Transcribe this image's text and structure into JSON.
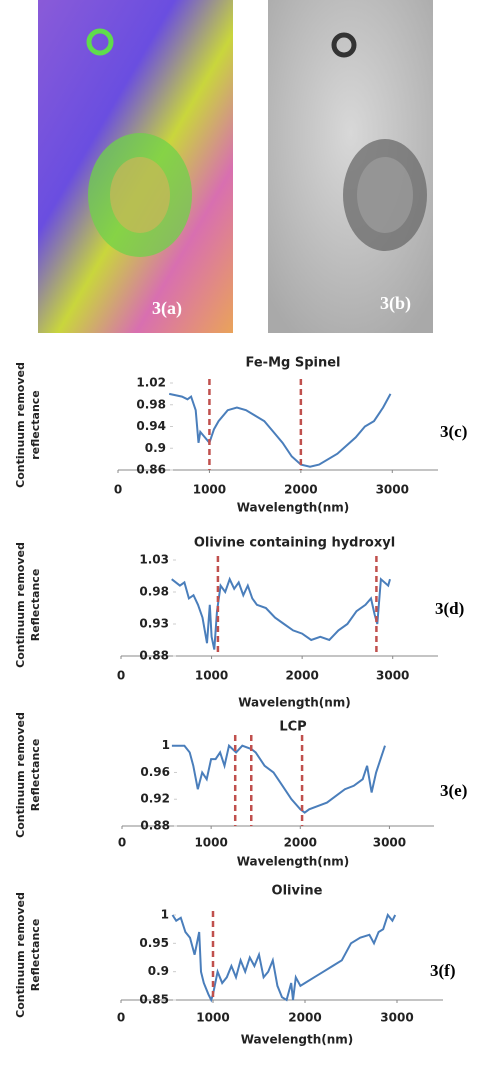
{
  "images": [
    {
      "label": "3(a)"
    },
    {
      "label": "3(b)"
    }
  ],
  "chart_data": [
    {
      "type": "line",
      "title": "Fe-Mg Spinel",
      "xlabel": "Wavelength(nm)",
      "ylabel": [
        "Continuum removed",
        "reflectance"
      ],
      "panel_label": "3(c)",
      "color": "#4a7ebb",
      "marker_color": "#c0504d",
      "markers": [
        1000,
        2000
      ],
      "xlim": [
        0,
        3500
      ],
      "xticks": [
        0,
        1000,
        2000,
        3000
      ],
      "ylim": [
        0.86,
        1.02
      ],
      "yticks": [
        0.86,
        0.9,
        0.94,
        0.98,
        1.02
      ],
      "x": [
        560,
        700,
        760,
        800,
        850,
        880,
        900,
        950,
        1000,
        1050,
        1100,
        1200,
        1300,
        1400,
        1500,
        1600,
        1700,
        1800,
        1900,
        2000,
        2100,
        2200,
        2400,
        2600,
        2700,
        2800,
        2900,
        2980
      ],
      "values": [
        1.0,
        0.995,
        0.99,
        0.995,
        0.97,
        0.91,
        0.93,
        0.92,
        0.91,
        0.935,
        0.95,
        0.97,
        0.975,
        0.97,
        0.96,
        0.95,
        0.93,
        0.91,
        0.885,
        0.87,
        0.866,
        0.87,
        0.89,
        0.92,
        0.94,
        0.95,
        0.975,
        1.0
      ]
    },
    {
      "type": "line",
      "title": "Olivine containing hydroxyl",
      "xlabel": "Wavelength(nm)",
      "ylabel": [
        "Continuum removed",
        "Reflectance"
      ],
      "panel_label": "3(d)",
      "color": "#4a7ebb",
      "marker_color": "#c0504d",
      "markers": [
        1070,
        2820
      ],
      "xlim": [
        0,
        3500
      ],
      "xticks": [
        0,
        1000,
        2000,
        3000
      ],
      "ylim": [
        0.88,
        1.03
      ],
      "yticks": [
        0.88,
        0.93,
        0.98,
        1.03
      ],
      "x": [
        560,
        650,
        700,
        750,
        800,
        850,
        900,
        950,
        980,
        1000,
        1030,
        1060,
        1100,
        1150,
        1200,
        1250,
        1300,
        1350,
        1400,
        1450,
        1500,
        1600,
        1700,
        1800,
        1900,
        2000,
        2100,
        2200,
        2300,
        2400,
        2500,
        2600,
        2700,
        2760,
        2800,
        2830,
        2870,
        2950,
        2970
      ],
      "values": [
        1.0,
        0.99,
        0.995,
        0.97,
        0.975,
        0.96,
        0.94,
        0.9,
        0.96,
        0.91,
        0.89,
        0.95,
        0.99,
        0.98,
        1.0,
        0.985,
        0.995,
        0.975,
        0.99,
        0.97,
        0.96,
        0.955,
        0.94,
        0.93,
        0.92,
        0.915,
        0.905,
        0.91,
        0.905,
        0.92,
        0.93,
        0.95,
        0.96,
        0.97,
        0.945,
        0.93,
        1.0,
        0.99,
        1.0
      ]
    },
    {
      "type": "line",
      "title": "LCP",
      "xlabel": "Wavelength(nm)",
      "ylabel": [
        "Continuum removed",
        "Reflectance"
      ],
      "panel_label": "3(e)",
      "color": "#4a7ebb",
      "marker_color": "#c0504d",
      "markers": [
        1270,
        1450,
        2020
      ],
      "xlim": [
        0,
        3500
      ],
      "xticks": [
        0,
        1000,
        2000,
        3000
      ],
      "ylim": [
        0.88,
        1.01
      ],
      "yticks": [
        0.88,
        0.92,
        0.96,
        1
      ],
      "x": [
        560,
        700,
        760,
        800,
        850,
        900,
        950,
        1000,
        1050,
        1100,
        1150,
        1200,
        1280,
        1350,
        1450,
        1500,
        1600,
        1700,
        1800,
        1900,
        2000,
        2050,
        2100,
        2200,
        2300,
        2400,
        2500,
        2600,
        2700,
        2750,
        2800,
        2850,
        2950
      ],
      "values": [
        1.0,
        1.0,
        0.99,
        0.97,
        0.935,
        0.96,
        0.95,
        0.98,
        0.98,
        0.99,
        0.97,
        1.0,
        0.99,
        1.0,
        0.995,
        0.99,
        0.97,
        0.96,
        0.94,
        0.92,
        0.905,
        0.9,
        0.905,
        0.91,
        0.915,
        0.925,
        0.935,
        0.94,
        0.95,
        0.97,
        0.93,
        0.96,
        1.0
      ]
    },
    {
      "type": "line",
      "title": "Olivine",
      "xlabel": "Wavelength(nm)",
      "ylabel": [
        "Continuum removed",
        "Reflectance"
      ],
      "panel_label": "3(f)",
      "color": "#4a7ebb",
      "marker_color": "#c0504d",
      "markers": [
        1000
      ],
      "xlim": [
        0,
        3500
      ],
      "xticks": [
        0,
        1000,
        2000,
        3000
      ],
      "ylim": [
        0.85,
        1.0
      ],
      "yticks": [
        0.85,
        0.9,
        0.95,
        1
      ],
      "x": [
        560,
        600,
        650,
        700,
        750,
        800,
        850,
        870,
        900,
        950,
        980,
        1000,
        1050,
        1100,
        1150,
        1200,
        1250,
        1300,
        1350,
        1400,
        1450,
        1500,
        1550,
        1600,
        1650,
        1700,
        1750,
        1800,
        1850,
        1870,
        1900,
        1950,
        2000,
        2100,
        2200,
        2300,
        2400,
        2500,
        2600,
        2700,
        2750,
        2800,
        2850,
        2900,
        2950,
        2980
      ],
      "values": [
        1.0,
        0.99,
        0.995,
        0.97,
        0.96,
        0.93,
        0.97,
        0.9,
        0.88,
        0.86,
        0.85,
        0.86,
        0.9,
        0.88,
        0.89,
        0.91,
        0.89,
        0.92,
        0.9,
        0.925,
        0.91,
        0.93,
        0.89,
        0.9,
        0.92,
        0.875,
        0.855,
        0.85,
        0.88,
        0.85,
        0.89,
        0.875,
        0.88,
        0.89,
        0.9,
        0.91,
        0.92,
        0.95,
        0.96,
        0.965,
        0.95,
        0.97,
        0.975,
        1.0,
        0.99,
        1.0
      ]
    }
  ]
}
